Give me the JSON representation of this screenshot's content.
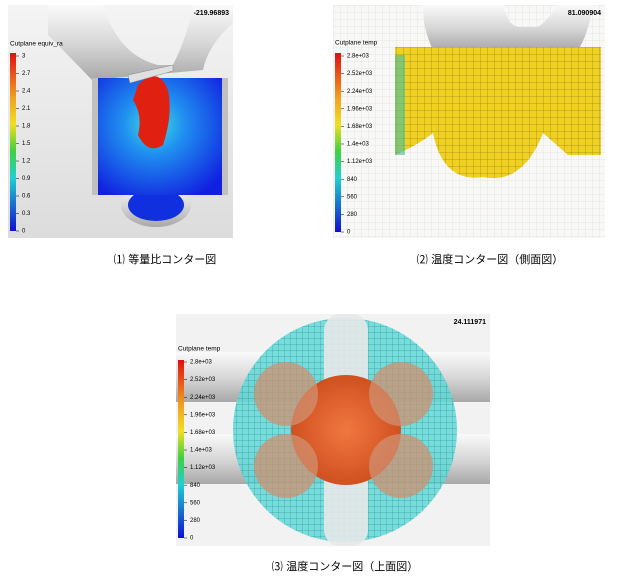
{
  "panels": [
    {
      "value": "-219.96893",
      "legend_title": "Cutplane equiv_ra",
      "ticks": [
        "3",
        "2.7",
        "2.4",
        "2.1",
        "1.8",
        "1.5",
        "1.2",
        "0.9",
        "0.6",
        "0.3",
        "0"
      ],
      "caption": "⑴ 等量比コンター図"
    },
    {
      "value": "81.090904",
      "legend_title": "Cutplane temp",
      "ticks": [
        "2.8e+03",
        "2.52e+03",
        "2.24e+03",
        "1.96e+03",
        "1.68e+03",
        "1.4e+03",
        "1.12e+03",
        "840",
        "560",
        "280",
        "0"
      ],
      "caption": "⑵ 温度コンター図（側面図）"
    },
    {
      "value": "24.111971",
      "legend_title": "Cutplane temp",
      "ticks": [
        "2.8e+03",
        "2.52e+03",
        "2.24e+03",
        "1.96e+03",
        "1.68e+03",
        "1.4e+03",
        "1.12e+03",
        "840",
        "560",
        "280",
        "0"
      ],
      "caption": "⑶ 温度コンター図（上面図）"
    }
  ]
}
